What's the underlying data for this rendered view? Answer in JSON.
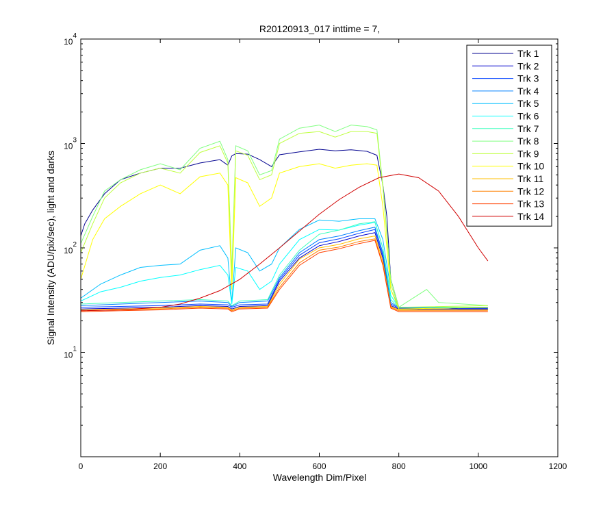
{
  "chart_data": {
    "type": "line",
    "title": "R20120913_017 inttime = 7,",
    "xlabel": "Wavelength Dim/Pixel",
    "ylabel": "Signal Intensity (ADU/pix/sec), light and darks",
    "xlim": [
      0,
      1200
    ],
    "ylim": [
      1,
      10000
    ],
    "yscale": "log",
    "xticks": [
      0,
      200,
      400,
      600,
      800,
      1000,
      1200
    ],
    "yticks": [
      {
        "base": "10",
        "exp": "1",
        "value": 10
      },
      {
        "base": "10",
        "exp": "2",
        "value": 100
      },
      {
        "base": "10",
        "exp": "3",
        "value": 1000
      },
      {
        "base": "10",
        "exp": "4",
        "value": 10000
      }
    ],
    "grid": false,
    "legend_position": "top-right",
    "series": [
      {
        "name": "Trk 1",
        "color": "#00008f",
        "x": [
          0,
          10,
          30,
          60,
          100,
          150,
          200,
          250,
          300,
          350,
          370,
          380,
          390,
          420,
          450,
          480,
          500,
          550,
          600,
          640,
          680,
          720,
          745,
          760,
          770,
          780,
          800,
          850,
          900,
          950,
          1024
        ],
        "y": [
          130,
          170,
          230,
          330,
          450,
          520,
          580,
          580,
          650,
          700,
          620,
          760,
          800,
          790,
          700,
          600,
          780,
          830,
          880,
          850,
          870,
          840,
          770,
          400,
          200,
          50,
          27,
          26,
          27,
          26,
          26
        ]
      },
      {
        "name": "Trk 2",
        "color": "#0000ce",
        "x": [
          0,
          100,
          200,
          300,
          370,
          380,
          400,
          470,
          500,
          550,
          600,
          650,
          700,
          740,
          760,
          780,
          800,
          1024
        ],
        "y": [
          26,
          26.5,
          27,
          28,
          27.5,
          26,
          27.5,
          28,
          48,
          80,
          105,
          115,
          130,
          140,
          80,
          28,
          26,
          26
        ]
      },
      {
        "name": "Trk 3",
        "color": "#0040ff",
        "x": [
          0,
          100,
          200,
          300,
          370,
          380,
          400,
          470,
          500,
          550,
          600,
          650,
          700,
          740,
          760,
          780,
          800,
          1024
        ],
        "y": [
          27,
          27.5,
          28,
          29,
          28.5,
          27,
          28.5,
          29,
          50,
          85,
          112,
          122,
          138,
          150,
          85,
          29,
          26.5,
          26.5
        ]
      },
      {
        "name": "Trk 4",
        "color": "#0080ff",
        "x": [
          0,
          100,
          200,
          300,
          370,
          380,
          400,
          470,
          500,
          550,
          600,
          650,
          700,
          740,
          760,
          780,
          800,
          1024
        ],
        "y": [
          28,
          29,
          30,
          31,
          30,
          27.5,
          30,
          31,
          52,
          90,
          120,
          130,
          146,
          158,
          90,
          30,
          27,
          27
        ]
      },
      {
        "name": "Trk 5",
        "color": "#00bfff",
        "x": [
          0,
          50,
          100,
          150,
          200,
          250,
          300,
          350,
          370,
          380,
          390,
          420,
          450,
          480,
          500,
          550,
          600,
          650,
          700,
          740,
          760,
          780,
          800,
          1024
        ],
        "y": [
          33,
          45,
          55,
          65,
          68,
          70,
          95,
          105,
          80,
          30,
          100,
          90,
          60,
          70,
          100,
          150,
          185,
          180,
          190,
          190,
          120,
          40,
          27,
          27
        ]
      },
      {
        "name": "Trk 6",
        "color": "#00ffff",
        "x": [
          0,
          50,
          100,
          150,
          200,
          250,
          300,
          350,
          370,
          380,
          390,
          420,
          450,
          480,
          500,
          550,
          600,
          650,
          700,
          740,
          760,
          780,
          800,
          1024
        ],
        "y": [
          31,
          38,
          42,
          48,
          52,
          55,
          62,
          68,
          55,
          29,
          65,
          60,
          40,
          48,
          70,
          120,
          150,
          148,
          165,
          175,
          100,
          35,
          27,
          27
        ]
      },
      {
        "name": "Trk 7",
        "color": "#40ffbf",
        "x": [
          0,
          100,
          200,
          300,
          370,
          380,
          400,
          470,
          500,
          550,
          600,
          650,
          700,
          740,
          760,
          780,
          800,
          1024
        ],
        "y": [
          29,
          30,
          31,
          32,
          31,
          28,
          31,
          32,
          55,
          95,
          135,
          148,
          170,
          178,
          100,
          32,
          27,
          27
        ]
      },
      {
        "name": "Trk 8",
        "color": "#80ff80",
        "x": [
          0,
          30,
          60,
          100,
          150,
          200,
          250,
          300,
          350,
          370,
          380,
          390,
          420,
          450,
          480,
          500,
          550,
          600,
          640,
          680,
          720,
          745,
          760,
          780,
          800,
          870,
          900,
          1024
        ],
        "y": [
          110,
          200,
          350,
          450,
          560,
          640,
          560,
          900,
          1050,
          700,
          60,
          950,
          850,
          500,
          550,
          1100,
          1400,
          1500,
          1300,
          1500,
          1450,
          1350,
          400,
          50,
          27,
          40,
          30,
          28
        ]
      },
      {
        "name": "Trk 9",
        "color": "#bfff40",
        "x": [
          0,
          30,
          60,
          100,
          150,
          200,
          250,
          300,
          350,
          370,
          380,
          390,
          420,
          450,
          480,
          500,
          550,
          600,
          640,
          680,
          720,
          745,
          760,
          780,
          800,
          1024
        ],
        "y": [
          90,
          170,
          300,
          420,
          520,
          580,
          520,
          820,
          950,
          650,
          50,
          850,
          770,
          450,
          500,
          1000,
          1250,
          1300,
          1150,
          1300,
          1300,
          1250,
          380,
          45,
          27,
          28
        ]
      },
      {
        "name": "Trk 10",
        "color": "#ffff00",
        "x": [
          0,
          30,
          60,
          100,
          150,
          200,
          250,
          300,
          350,
          370,
          380,
          390,
          420,
          450,
          480,
          500,
          550,
          600,
          640,
          680,
          720,
          745,
          760,
          780,
          800,
          1024
        ],
        "y": [
          50,
          120,
          190,
          250,
          330,
          400,
          330,
          480,
          520,
          400,
          40,
          470,
          420,
          250,
          300,
          520,
          600,
          640,
          580,
          620,
          640,
          620,
          250,
          40,
          26,
          27
        ]
      },
      {
        "name": "Trk 11",
        "color": "#ffbf00",
        "x": [
          0,
          100,
          200,
          300,
          370,
          380,
          400,
          470,
          500,
          550,
          600,
          650,
          700,
          740,
          760,
          780,
          800,
          1024
        ],
        "y": [
          25.5,
          26,
          26.5,
          27.5,
          27,
          25.5,
          27,
          27.5,
          45,
          78,
          100,
          108,
          122,
          130,
          75,
          27.5,
          25.5,
          25.5
        ]
      },
      {
        "name": "Trk 12",
        "color": "#ff8000",
        "x": [
          0,
          100,
          200,
          300,
          370,
          380,
          400,
          470,
          500,
          550,
          600,
          650,
          700,
          740,
          760,
          780,
          800,
          1024
        ],
        "y": [
          25,
          25.5,
          26,
          27,
          26.5,
          25,
          26.5,
          27,
          42,
          72,
          95,
          102,
          115,
          122,
          70,
          27,
          25,
          25
        ]
      },
      {
        "name": "Trk 13",
        "color": "#ff4000",
        "x": [
          0,
          100,
          200,
          300,
          370,
          380,
          400,
          470,
          500,
          550,
          600,
          650,
          700,
          740,
          760,
          780,
          800,
          1024
        ],
        "y": [
          24.5,
          25,
          25.5,
          26.5,
          26,
          24.5,
          26,
          26.5,
          40,
          68,
          90,
          98,
          110,
          118,
          68,
          26.5,
          24.5,
          24.5
        ]
      },
      {
        "name": "Trk 14",
        "color": "#d00000",
        "x": [
          0,
          100,
          200,
          250,
          300,
          350,
          400,
          450,
          500,
          550,
          600,
          650,
          700,
          750,
          800,
          850,
          900,
          950,
          1000,
          1024
        ],
        "y": [
          25,
          25.5,
          27,
          29,
          33,
          39,
          50,
          70,
          100,
          145,
          210,
          290,
          380,
          470,
          510,
          470,
          350,
          200,
          100,
          75
        ]
      }
    ]
  }
}
